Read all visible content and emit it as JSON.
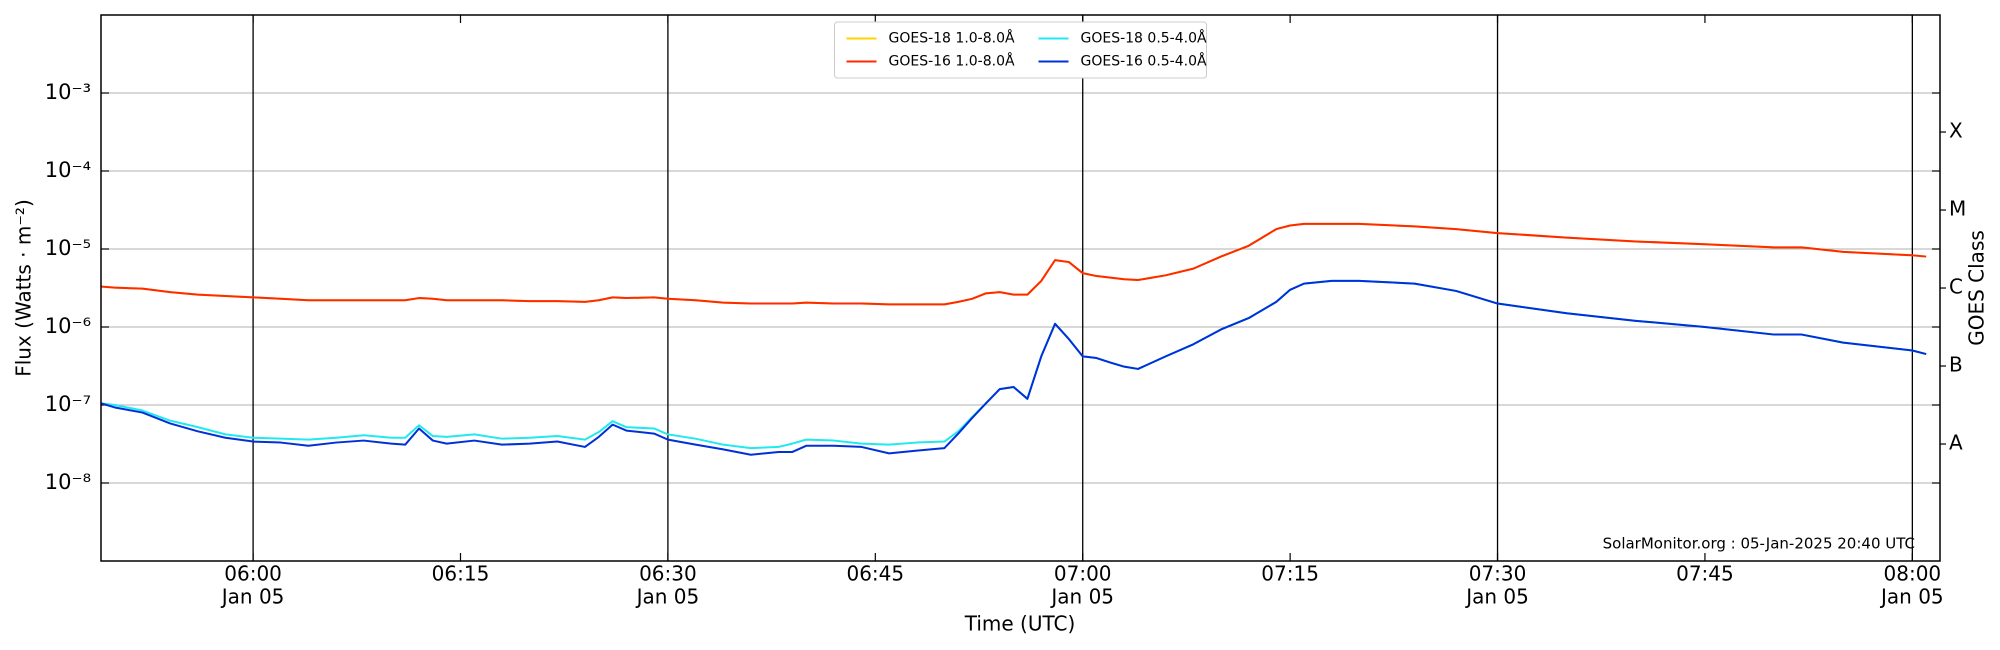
{
  "chart_data": {
    "type": "line",
    "xlabel": "Time (UTC)",
    "ylabel": "Flux (Watts · m⁻²)",
    "y2label": "GOES Class",
    "annotation": "SolarMonitor.org : 05-Jan-2025 20:40 UTC",
    "legend": "upper center",
    "log_y": true,
    "grid": true,
    "xlim": [
      "05:49",
      "08:02"
    ],
    "xticks": [
      {
        "value": "06:00",
        "label": "06:00",
        "date": "Jan 05"
      },
      "06:15",
      {
        "value": "06:30",
        "label": "06:30",
        "date": "Jan 05"
      },
      "06:45",
      {
        "value": "07:00",
        "label": "07:00",
        "date": "Jan 05"
      },
      "07:15",
      {
        "value": "07:30",
        "label": "07:30",
        "date": "Jan 05"
      },
      "07:45",
      {
        "value": "08:00",
        "label": "08:00",
        "date": "Jan 05"
      }
    ],
    "ylim": [
      1e-09,
      0.01
    ],
    "yticks": [
      {
        "value": 1e-08,
        "label": "10⁻⁸"
      },
      {
        "value": 1e-07,
        "label": "10⁻⁷"
      },
      {
        "value": 1e-06,
        "label": "10⁻⁶"
      },
      {
        "value": 1e-05,
        "label": "10⁻⁵"
      },
      {
        "value": 0.0001,
        "label": "10⁻⁴"
      },
      {
        "value": 0.001,
        "label": "10⁻³"
      }
    ],
    "y2lim": [
      1e-09,
      0.01
    ],
    "y2ticks": [
      {
        "value": 3.16e-08,
        "label": "A"
      },
      {
        "value": 3.16e-07,
        "label": "B"
      },
      {
        "value": 3.16e-06,
        "label": "C"
      },
      {
        "value": 3.16e-05,
        "label": "M"
      },
      {
        "value": 0.000316,
        "label": "X"
      }
    ],
    "x": [
      "05:49",
      "05:50",
      "05:52",
      "05:54",
      "05:56",
      "05:58",
      "06:00",
      "06:02",
      "06:04",
      "06:06",
      "06:08",
      "06:10",
      "06:11",
      "06:12",
      "06:13",
      "06:14",
      "06:16",
      "06:18",
      "06:20",
      "06:22",
      "06:24",
      "06:25",
      "06:26",
      "06:27",
      "06:29",
      "06:30",
      "06:32",
      "06:34",
      "06:36",
      "06:38",
      "06:39",
      "06:40",
      "06:42",
      "06:44",
      "06:46",
      "06:48",
      "06:50",
      "06:51",
      "06:52",
      "06:53",
      "06:54",
      "06:55",
      "06:56",
      "06:57",
      "06:58",
      "06:59",
      "07:00",
      "07:01",
      "07:02",
      "07:03",
      "07:04",
      "07:06",
      "07:08",
      "07:10",
      "07:12",
      "07:14",
      "07:15",
      "07:16",
      "07:18",
      "07:20",
      "07:24",
      "07:27",
      "07:30",
      "07:35",
      "07:40",
      "07:45",
      "07:50",
      "07:52",
      "07:55",
      "08:00",
      "08:01"
    ],
    "series": [
      {
        "name": "GOES-18 1.0-8.0Å",
        "color": "#ffd400",
        "values": [
          3.3e-06,
          3.2e-06,
          3.1e-06,
          2.8e-06,
          2.6e-06,
          2.5e-06,
          2.4e-06,
          2.3e-06,
          2.2e-06,
          2.2e-06,
          2.2e-06,
          2.2e-06,
          2.2e-06,
          2.35e-06,
          2.3e-06,
          2.2e-06,
          2.2e-06,
          2.2e-06,
          2.15e-06,
          2.15e-06,
          2.1e-06,
          2.2e-06,
          2.4e-06,
          2.35e-06,
          2.4e-06,
          2.3e-06,
          2.2e-06,
          2.05e-06,
          2e-06,
          2e-06,
          2e-06,
          2.05e-06,
          2e-06,
          2e-06,
          1.95e-06,
          1.95e-06,
          1.95e-06,
          2.1e-06,
          2.3e-06,
          2.7e-06,
          2.8e-06,
          2.6e-06,
          2.6e-06,
          3.9e-06,
          7.2e-06,
          6.8e-06,
          4.9e-06,
          4.5e-06,
          4.3e-06,
          4.1e-06,
          4e-06,
          4.6e-06,
          5.6e-06,
          8e-06,
          1.1e-05,
          1.8e-05,
          2e-05,
          2.1e-05,
          2.1e-05,
          2.1e-05,
          1.95e-05,
          1.8e-05,
          1.6e-05,
          1.4e-05,
          1.25e-05,
          1.15e-05,
          1.05e-05,
          1.05e-05,
          9.2e-06,
          8.3e-06,
          8e-06
        ]
      },
      {
        "name": "GOES-16 1.0-8.0Å",
        "color": "#ff2a00",
        "values": [
          3.3e-06,
          3.2e-06,
          3.1e-06,
          2.8e-06,
          2.6e-06,
          2.5e-06,
          2.4e-06,
          2.3e-06,
          2.2e-06,
          2.2e-06,
          2.2e-06,
          2.2e-06,
          2.2e-06,
          2.35e-06,
          2.3e-06,
          2.2e-06,
          2.2e-06,
          2.2e-06,
          2.15e-06,
          2.15e-06,
          2.1e-06,
          2.2e-06,
          2.4e-06,
          2.35e-06,
          2.4e-06,
          2.3e-06,
          2.2e-06,
          2.05e-06,
          2e-06,
          2e-06,
          2e-06,
          2.05e-06,
          2e-06,
          2e-06,
          1.95e-06,
          1.95e-06,
          1.95e-06,
          2.1e-06,
          2.3e-06,
          2.7e-06,
          2.8e-06,
          2.6e-06,
          2.6e-06,
          3.9e-06,
          7.2e-06,
          6.8e-06,
          4.9e-06,
          4.5e-06,
          4.3e-06,
          4.1e-06,
          4e-06,
          4.6e-06,
          5.6e-06,
          8e-06,
          1.1e-05,
          1.8e-05,
          2e-05,
          2.1e-05,
          2.1e-05,
          2.1e-05,
          1.95e-05,
          1.8e-05,
          1.6e-05,
          1.4e-05,
          1.25e-05,
          1.15e-05,
          1.05e-05,
          1.05e-05,
          9.2e-06,
          8.3e-06,
          8e-06
        ]
      },
      {
        "name": "GOES-18 0.5-4.0Å",
        "color": "#22e8f0",
        "values": [
          1.05e-07,
          1e-07,
          8.5e-08,
          6.3e-08,
          5.2e-08,
          4.2e-08,
          3.8e-08,
          3.7e-08,
          3.6e-08,
          3.8e-08,
          4.1e-08,
          3.8e-08,
          3.8e-08,
          5.5e-08,
          4e-08,
          3.9e-08,
          4.2e-08,
          3.7e-08,
          3.8e-08,
          4e-08,
          3.6e-08,
          4.5e-08,
          6.2e-08,
          5.2e-08,
          5e-08,
          4.2e-08,
          3.7e-08,
          3.1e-08,
          2.8e-08,
          2.9e-08,
          3.2e-08,
          3.6e-08,
          3.5e-08,
          3.2e-08,
          3.1e-08,
          3.3e-08,
          3.4e-08,
          4.6e-08,
          7e-08,
          1.05e-07,
          1.6e-07,
          1.7e-07,
          1.2e-07,
          4.2e-07,
          1.1e-06,
          7e-07,
          4.2e-07,
          4e-07,
          3.5e-07,
          3.1e-07,
          2.9e-07,
          4.2e-07,
          6e-07,
          9.3e-07,
          1.3e-06,
          2.1e-06,
          3e-06,
          3.6e-06,
          3.9e-06,
          3.9e-06,
          3.6e-06,
          2.9e-06,
          2e-06,
          1.5e-06,
          1.2e-06,
          1e-06,
          8e-07,
          8e-07,
          6.3e-07,
          5e-07,
          4.5e-07
        ]
      },
      {
        "name": "GOES-16 0.5-4.0Å",
        "color": "#0030d8",
        "values": [
          1.05e-07,
          9.3e-08,
          8e-08,
          5.8e-08,
          4.6e-08,
          3.8e-08,
          3.4e-08,
          3.3e-08,
          3e-08,
          3.3e-08,
          3.5e-08,
          3.2e-08,
          3.1e-08,
          5e-08,
          3.5e-08,
          3.2e-08,
          3.5e-08,
          3.1e-08,
          3.2e-08,
          3.4e-08,
          2.9e-08,
          3.9e-08,
          5.6e-08,
          4.7e-08,
          4.3e-08,
          3.6e-08,
          3.1e-08,
          2.7e-08,
          2.3e-08,
          2.5e-08,
          2.5e-08,
          3e-08,
          3e-08,
          2.9e-08,
          2.4e-08,
          2.6e-08,
          2.8e-08,
          4.3e-08,
          6.8e-08,
          1.05e-07,
          1.6e-07,
          1.7e-07,
          1.2e-07,
          4.2e-07,
          1.1e-06,
          7e-07,
          4.2e-07,
          4e-07,
          3.5e-07,
          3.1e-07,
          2.9e-07,
          4.2e-07,
          6e-07,
          9.3e-07,
          1.3e-06,
          2.1e-06,
          3e-06,
          3.6e-06,
          3.9e-06,
          3.9e-06,
          3.6e-06,
          2.9e-06,
          2e-06,
          1.5e-06,
          1.2e-06,
          1e-06,
          8e-07,
          8e-07,
          6.3e-07,
          5e-07,
          4.5e-07
        ]
      }
    ]
  }
}
